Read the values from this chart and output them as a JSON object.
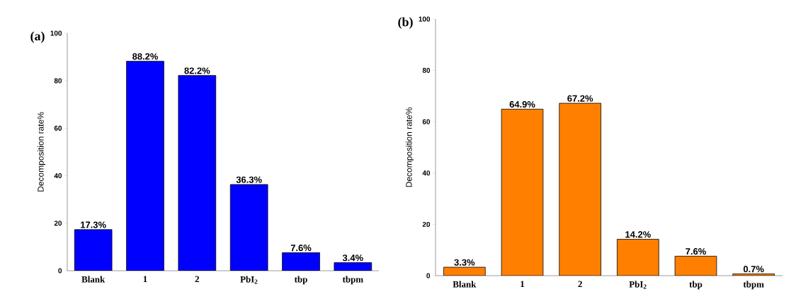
{
  "chart_data": [
    {
      "type": "bar",
      "title": "(a)",
      "ylabel": "Decomposition rate%",
      "categories": [
        "Blank",
        "1",
        "2",
        "PbI$_{2}$",
        "tbp",
        "tbpm"
      ],
      "values": [
        17.3,
        88.2,
        82.2,
        36.3,
        7.6,
        3.4
      ],
      "value_labels": [
        "17.3%",
        "88.2%",
        "82.2%",
        "36.3%",
        "7.6%",
        "3.4%"
      ],
      "color": "#0000ff",
      "ylim": [
        0,
        100
      ],
      "yticks": [
        0,
        20,
        40,
        60,
        80,
        100
      ]
    },
    {
      "type": "bar",
      "title": "(b)",
      "ylabel": "Decomposition rate%",
      "categories": [
        "Blank",
        "1",
        "2",
        "PbI$_{2}$",
        "tbp",
        "tbpm"
      ],
      "values": [
        3.3,
        64.9,
        67.2,
        14.2,
        7.6,
        0.7
      ],
      "value_labels": [
        "3.3%",
        "64.9%",
        "67.2%",
        "14.2%",
        "7.6%",
        "0.7%"
      ],
      "color": "#ff8000",
      "ylim": [
        0,
        100
      ],
      "yticks": [
        0,
        20,
        40,
        60,
        80,
        100
      ]
    }
  ]
}
